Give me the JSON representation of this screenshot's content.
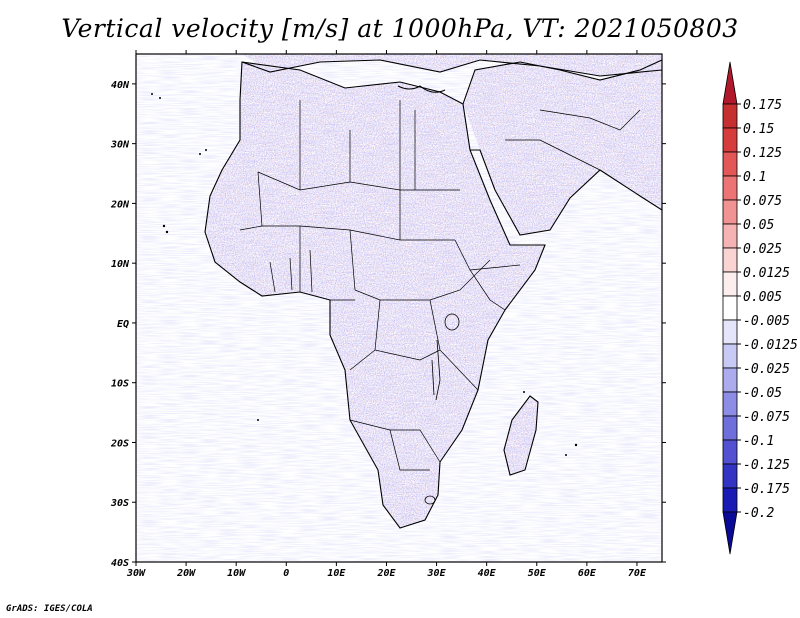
{
  "title": "Vertical velocity [m/s] at 1000hPa, VT: 2021050803",
  "credit": "GrADS: IGES/COLA",
  "map": {
    "lon_ticks": [
      "30W",
      "20W",
      "10W",
      "0",
      "10E",
      "20E",
      "30E",
      "40E",
      "50E",
      "60E",
      "70E"
    ],
    "lat_ticks": [
      "40N",
      "30N",
      "20N",
      "10N",
      "EQ",
      "10S",
      "20S",
      "30S",
      "40S"
    ],
    "lon_range": [
      -30,
      75
    ],
    "lat_range": [
      -40,
      45
    ]
  },
  "colorbar": {
    "labels": [
      "0.175",
      "0.15",
      "0.125",
      "0.1",
      "0.075",
      "0.05",
      "0.025",
      "0.0125",
      "0.005",
      "-0.005",
      "-0.0125",
      "-0.025",
      "-0.05",
      "-0.075",
      "-0.1",
      "-0.125",
      "-0.175",
      "-0.2"
    ],
    "colors": [
      "#b2182b",
      "#c62f2f",
      "#d73c3c",
      "#e45757",
      "#ed7474",
      "#f29393",
      "#f6b3b3",
      "#fad3d3",
      "#fdeeee",
      "#ffffff",
      "#e4e4fb",
      "#c9c9f5",
      "#ababee",
      "#8d8de6",
      "#6f6fdc",
      "#5151d1",
      "#3333c4",
      "#1a1ab4",
      "#0a0a96"
    ]
  }
}
